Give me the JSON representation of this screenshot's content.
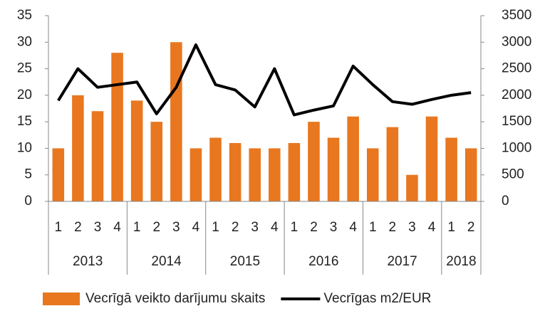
{
  "chart_data": {
    "type": "bar-line",
    "groups": [
      {
        "label": "2013",
        "categories": [
          "1",
          "2",
          "3",
          "4"
        ]
      },
      {
        "label": "2014",
        "categories": [
          "1",
          "2",
          "3",
          "4"
        ]
      },
      {
        "label": "2015",
        "categories": [
          "1",
          "2",
          "3",
          "4"
        ]
      },
      {
        "label": "2016",
        "categories": [
          "1",
          "2",
          "3",
          "4"
        ]
      },
      {
        "label": "2017",
        "categories": [
          "1",
          "2",
          "3",
          "4"
        ]
      },
      {
        "label": "2018",
        "categories": [
          "1",
          "2"
        ]
      }
    ],
    "series": [
      {
        "name": "Vecrīgā veikto darījumu skaits",
        "type": "bar",
        "color": "#e8771f",
        "axis": "y",
        "values": [
          10,
          20,
          17,
          28,
          19,
          15,
          30,
          10,
          12,
          11,
          10,
          10,
          11,
          15,
          12,
          16,
          10,
          14,
          5,
          16,
          12,
          10
        ]
      },
      {
        "name": "Vecrīgas m2/EUR",
        "type": "line",
        "color": "#000000",
        "axis": "y2",
        "values": [
          1900,
          2500,
          2150,
          2200,
          2250,
          1650,
          2150,
          2950,
          2200,
          2100,
          1780,
          2500,
          1630,
          1720,
          1800,
          2550,
          2200,
          1880,
          1830,
          1920,
          2000,
          2050
        ]
      }
    ],
    "ylim": [
      0,
      35
    ],
    "yticks": [
      0,
      5,
      10,
      15,
      20,
      25,
      30,
      35
    ],
    "y2lim": [
      0,
      3500
    ],
    "y2ticks": [
      0,
      500,
      1000,
      1500,
      2000,
      2500,
      3000,
      3500
    ],
    "legend": "bottom",
    "grid": false
  }
}
